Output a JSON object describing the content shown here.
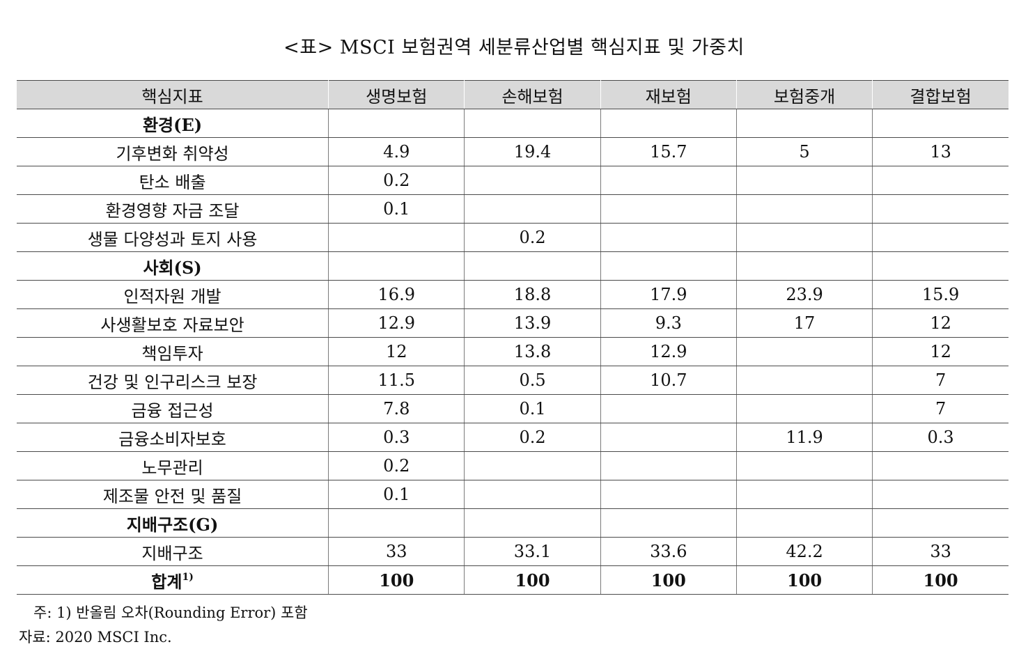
{
  "title": "<표> MSCI 보험권역 세분류산업별 핵심지표 및 가중치",
  "header": {
    "label": "핵심지표",
    "columns": [
      "생명보험",
      "손해보험",
      "재보험",
      "보험중개",
      "결합보험"
    ]
  },
  "rows": [
    {
      "type": "section",
      "label": "환경(E)",
      "values": [
        "",
        "",
        "",
        "",
        ""
      ]
    },
    {
      "type": "item",
      "label": "기후변화 취약성",
      "values": [
        "4.9",
        "19.4",
        "15.7",
        "5",
        "13"
      ]
    },
    {
      "type": "item",
      "label": "탄소 배출",
      "values": [
        "0.2",
        "",
        "",
        "",
        ""
      ]
    },
    {
      "type": "item",
      "label": "환경영향 자금 조달",
      "values": [
        "0.1",
        "",
        "",
        "",
        ""
      ]
    },
    {
      "type": "item",
      "label": "생물 다양성과 토지 사용",
      "values": [
        "",
        "0.2",
        "",
        "",
        ""
      ]
    },
    {
      "type": "section",
      "label": "사회(S)",
      "values": [
        "",
        "",
        "",
        "",
        ""
      ]
    },
    {
      "type": "item",
      "label": "인적자원 개발",
      "values": [
        "16.9",
        "18.8",
        "17.9",
        "23.9",
        "15.9"
      ]
    },
    {
      "type": "item",
      "label": "사생활보호 자료보안",
      "values": [
        "12.9",
        "13.9",
        "9.3",
        "17",
        "12"
      ]
    },
    {
      "type": "item",
      "label": "책임투자",
      "values": [
        "12",
        "13.8",
        "12.9",
        "",
        "12"
      ]
    },
    {
      "type": "item",
      "label": "건강 및 인구리스크 보장",
      "values": [
        "11.5",
        "0.5",
        "10.7",
        "",
        "7"
      ]
    },
    {
      "type": "item",
      "label": "금융 접근성",
      "values": [
        "7.8",
        "0.1",
        "",
        "",
        "7"
      ]
    },
    {
      "type": "item",
      "label": "금융소비자보호",
      "values": [
        "0.3",
        "0.2",
        "",
        "11.9",
        "0.3"
      ]
    },
    {
      "type": "item",
      "label": "노무관리",
      "values": [
        "0.2",
        "",
        "",
        "",
        ""
      ]
    },
    {
      "type": "item",
      "label": "제조물 안전 및 품질",
      "values": [
        "0.1",
        "",
        "",
        "",
        ""
      ]
    },
    {
      "type": "section",
      "label": "지배구조(G)",
      "values": [
        "",
        "",
        "",
        "",
        ""
      ]
    },
    {
      "type": "item",
      "label": "지배구조",
      "values": [
        "33",
        "33.1",
        "33.6",
        "42.2",
        "33"
      ]
    }
  ],
  "total": {
    "label": "합계",
    "footnote_mark": "1)",
    "values": [
      "100",
      "100",
      "100",
      "100",
      "100"
    ]
  },
  "note": "주: 1) 반올림 오차(Rounding Error) 포함",
  "source": "자료: 2020 MSCI Inc."
}
